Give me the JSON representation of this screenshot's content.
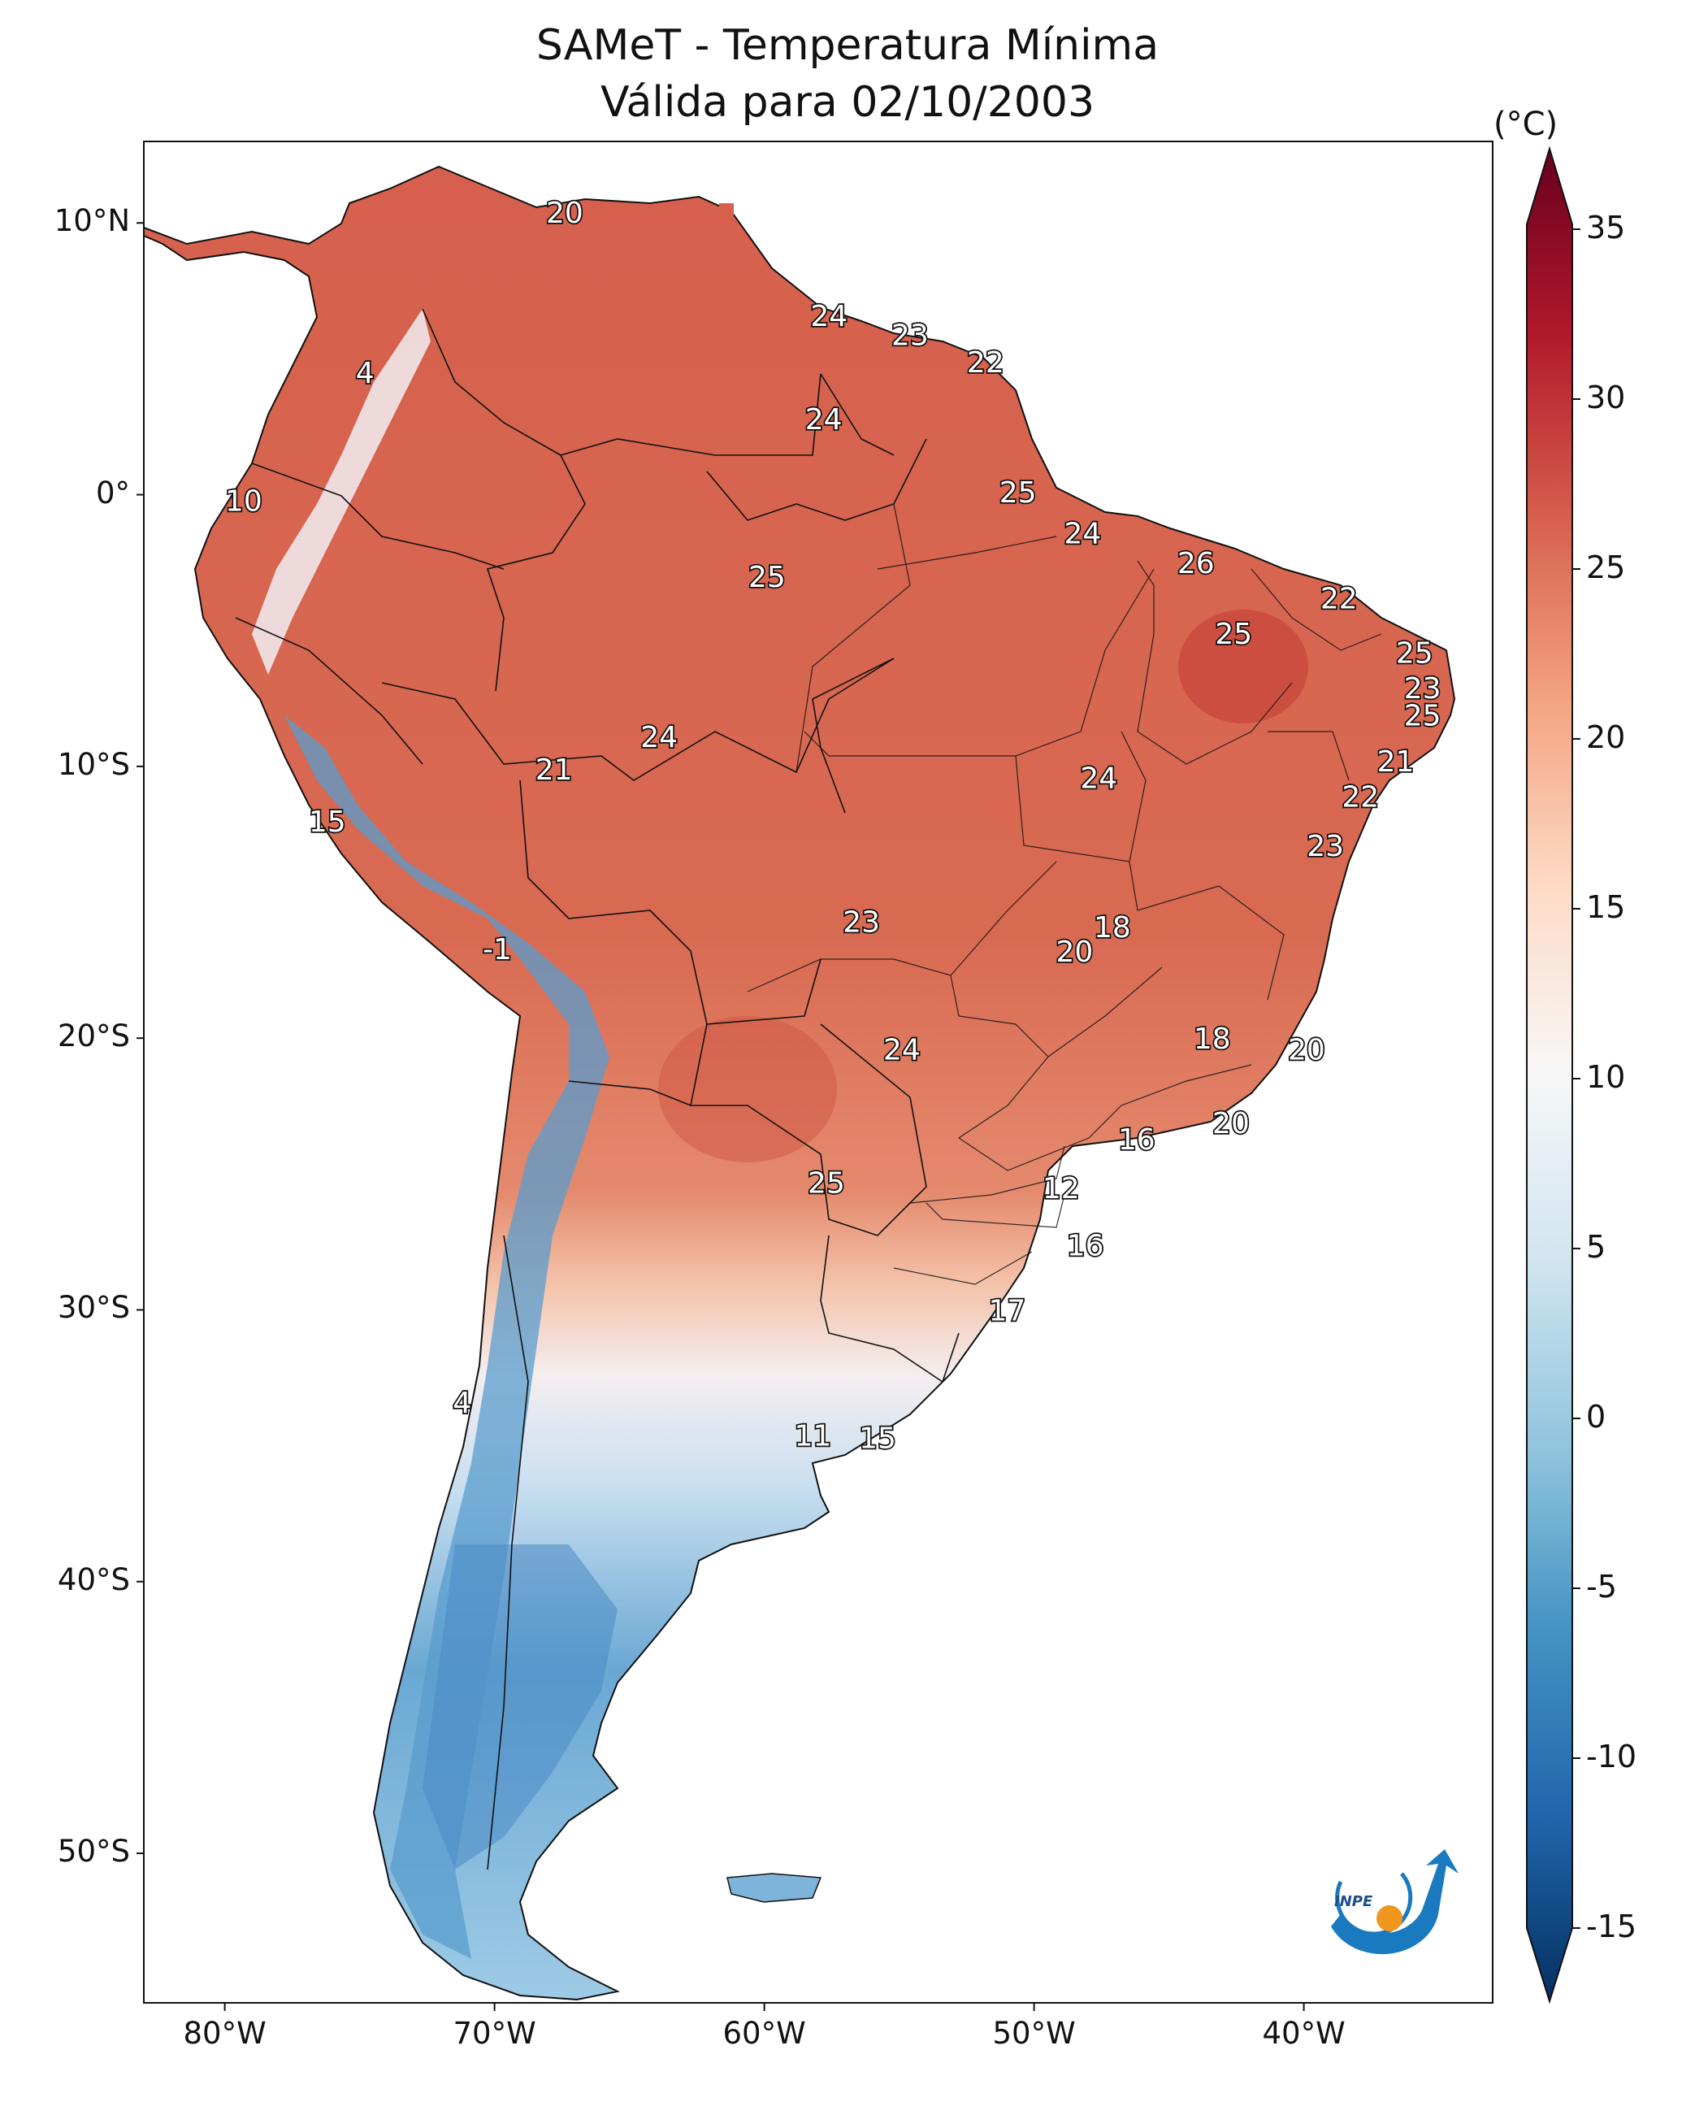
{
  "title": "SAMeT - Temperatura Mínima",
  "subtitle": "Válida para 02/10/2003",
  "unit_label": "(°C)",
  "lat_labels": [
    "10°N",
    "0°",
    "10°S",
    "20°S",
    "30°S",
    "40°S",
    "50°S"
  ],
  "lon_labels": [
    "80°W",
    "70°W",
    "60°W",
    "50°W",
    "40°W"
  ],
  "colorbar": {
    "ticks": [
      "35",
      "30",
      "25",
      "20",
      "15",
      "10",
      "5",
      "0",
      "-5",
      "-10",
      "-15"
    ],
    "colors": [
      "#053061",
      "#2166ac",
      "#4393c3",
      "#92c5de",
      "#d1e5f0",
      "#f7f7f7",
      "#fddbc7",
      "#f4a582",
      "#d6604d",
      "#b2182b",
      "#67001f"
    ]
  },
  "logo_text": "INPE",
  "map_values": [
    {
      "lon": -67.4,
      "lat": 10.4,
      "v": "20"
    },
    {
      "lon": -74.8,
      "lat": 4.5,
      "v": "4"
    },
    {
      "lon": -57.6,
      "lat": 6.6,
      "v": "24"
    },
    {
      "lon": -54.6,
      "lat": 5.9,
      "v": "23"
    },
    {
      "lon": -51.8,
      "lat": 4.9,
      "v": "22"
    },
    {
      "lon": -57.8,
      "lat": 2.8,
      "v": "24"
    },
    {
      "lon": -50.6,
      "lat": 0.1,
      "v": "25"
    },
    {
      "lon": -79.3,
      "lat": -0.2,
      "v": "10"
    },
    {
      "lon": -48.2,
      "lat": -1.4,
      "v": "24"
    },
    {
      "lon": -44.0,
      "lat": -2.5,
      "v": "26"
    },
    {
      "lon": -59.9,
      "lat": -3.0,
      "v": "25"
    },
    {
      "lon": -38.7,
      "lat": -3.8,
      "v": "22"
    },
    {
      "lon": -42.6,
      "lat": -5.1,
      "v": "25"
    },
    {
      "lon": -35.9,
      "lat": -5.8,
      "v": "25"
    },
    {
      "lon": -35.6,
      "lat": -7.1,
      "v": "23"
    },
    {
      "lon": -35.6,
      "lat": -8.1,
      "v": "25"
    },
    {
      "lon": -63.9,
      "lat": -8.9,
      "v": "24"
    },
    {
      "lon": -36.6,
      "lat": -9.8,
      "v": "21"
    },
    {
      "lon": -67.8,
      "lat": -10.1,
      "v": "21"
    },
    {
      "lon": -47.6,
      "lat": -10.4,
      "v": "24"
    },
    {
      "lon": -37.9,
      "lat": -11.1,
      "v": "22"
    },
    {
      "lon": -76.2,
      "lat": -12.0,
      "v": "15"
    },
    {
      "lon": -39.2,
      "lat": -12.9,
      "v": "23"
    },
    {
      "lon": -56.4,
      "lat": -15.7,
      "v": "23"
    },
    {
      "lon": -47.1,
      "lat": -15.9,
      "v": "18"
    },
    {
      "lon": -48.5,
      "lat": -16.8,
      "v": "20"
    },
    {
      "lon": -69.9,
      "lat": -16.7,
      "v": "-1"
    },
    {
      "lon": -43.4,
      "lat": -20.0,
      "v": "18"
    },
    {
      "lon": -54.9,
      "lat": -20.4,
      "v": "24"
    },
    {
      "lon": -39.9,
      "lat": -20.4,
      "v": "20"
    },
    {
      "lon": -42.7,
      "lat": -23.1,
      "v": "20"
    },
    {
      "lon": -46.2,
      "lat": -23.7,
      "v": "16"
    },
    {
      "lon": -57.7,
      "lat": -25.3,
      "v": "25"
    },
    {
      "lon": -49.0,
      "lat": -25.5,
      "v": "12"
    },
    {
      "lon": -48.1,
      "lat": -27.6,
      "v": "16"
    },
    {
      "lon": -51.0,
      "lat": -30.0,
      "v": "17"
    },
    {
      "lon": -71.2,
      "lat": -33.4,
      "v": "4"
    },
    {
      "lon": -58.2,
      "lat": -34.6,
      "v": "11"
    },
    {
      "lon": -55.8,
      "lat": -34.7,
      "v": "15"
    }
  ]
}
